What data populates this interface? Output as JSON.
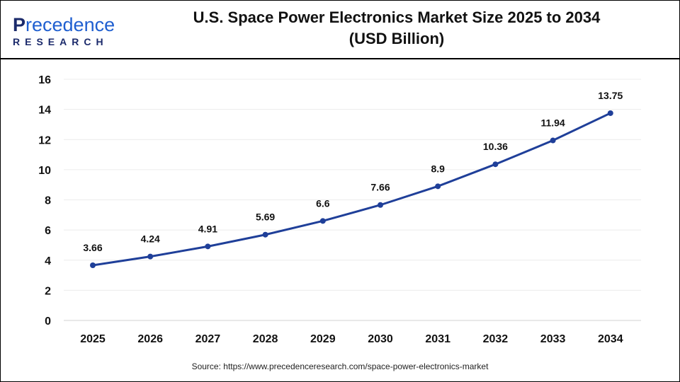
{
  "header": {
    "logo_top_first": "P",
    "logo_top_rest": "recedence",
    "logo_bottom": "RESEARCH",
    "title_line1": "U.S. Space Power Electronics Market Size 2025 to 2034",
    "title_line2": "(USD Billion)"
  },
  "source": "Source: https://www.precedenceresearch.com/space-power-electronics-market",
  "chart_data": {
    "type": "line",
    "title": "U.S. Space Power Electronics Market Size 2025 to 2034 (USD Billion)",
    "categories": [
      "2025",
      "2026",
      "2027",
      "2028",
      "2029",
      "2030",
      "2031",
      "2032",
      "2033",
      "2034"
    ],
    "values": [
      3.66,
      4.24,
      4.91,
      5.69,
      6.6,
      7.66,
      8.9,
      10.36,
      11.94,
      13.75
    ],
    "labels": [
      "3.66",
      "4.24",
      "4.91",
      "5.69",
      "6.6",
      "7.66",
      "8.9",
      "10.36",
      "11.94",
      "13.75"
    ],
    "ylim": [
      0,
      16
    ],
    "yticks": [
      0,
      2,
      4,
      6,
      8,
      10,
      12,
      14,
      16
    ],
    "grid": true,
    "line_color": "#1f3f99"
  }
}
